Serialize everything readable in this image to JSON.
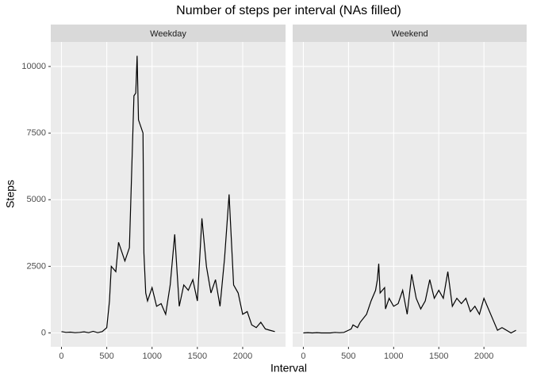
{
  "chart_data": {
    "type": "line",
    "title": "Number of steps per interval (NAs filled)",
    "x_label": "Interval",
    "y_label": "Steps",
    "x": [
      0,
      50,
      100,
      150,
      200,
      250,
      300,
      350,
      400,
      450,
      500,
      530,
      550,
      600,
      630,
      700,
      750,
      800,
      820,
      835,
      850,
      900,
      910,
      930,
      950,
      1000,
      1050,
      1100,
      1150,
      1200,
      1250,
      1300,
      1350,
      1400,
      1450,
      1500,
      1550,
      1600,
      1650,
      1700,
      1750,
      1800,
      1850,
      1900,
      1950,
      2000,
      2050,
      2100,
      2150,
      2200,
      2250,
      2300,
      2355
    ],
    "series": [
      {
        "name": "Weekday",
        "color": "#000000",
        "values": [
          50,
          20,
          30,
          10,
          20,
          40,
          10,
          60,
          10,
          50,
          200,
          1200,
          2500,
          2300,
          3400,
          2700,
          3200,
          8900,
          9000,
          10400,
          8000,
          7500,
          3000,
          1500,
          1200,
          1700,
          1000,
          1100,
          700,
          1800,
          3700,
          1000,
          1800,
          1600,
          2000,
          1200,
          4300,
          2500,
          1500,
          2000,
          1000,
          2800,
          5200,
          1800,
          1500,
          700,
          800,
          300,
          200,
          400,
          150,
          100,
          50
        ]
      },
      {
        "name": "Weekend",
        "color": "#000000",
        "values": [
          0,
          10,
          0,
          10,
          0,
          0,
          0,
          20,
          10,
          20,
          100,
          150,
          300,
          200,
          400,
          700,
          1200,
          1600,
          2000,
          2600,
          1500,
          1700,
          900,
          1100,
          1300,
          1000,
          1100,
          1600,
          700,
          2200,
          1300,
          900,
          1200,
          2000,
          1300,
          1600,
          1300,
          2300,
          1000,
          1300,
          1100,
          1300,
          800,
          1000,
          700,
          1300,
          900,
          500,
          100,
          200,
          100,
          0,
          100
        ]
      }
    ],
    "xlim": [
      -118,
      2473
    ],
    "xticks": [
      0,
      500,
      1000,
      1500,
      2000
    ],
    "ylim": [
      -520,
      10920
    ],
    "yticks": [
      0,
      2500,
      5000,
      7500,
      10000
    ],
    "grid": true
  }
}
